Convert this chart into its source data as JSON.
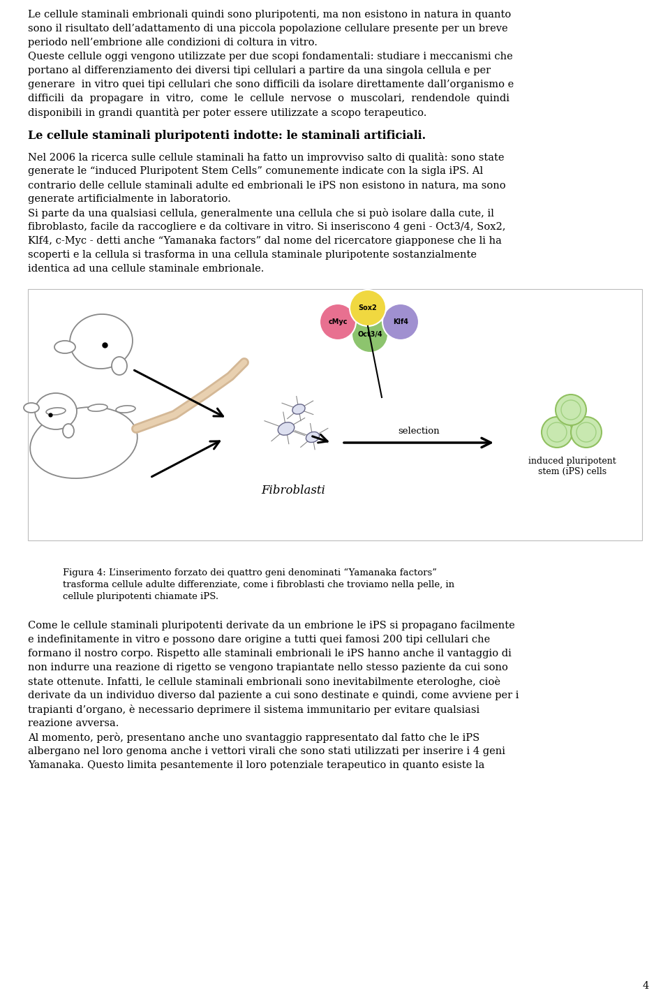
{
  "page_number": "4",
  "bg": "#ffffff",
  "ml": 40,
  "mr": 920,
  "fs_body": 10.5,
  "fs_heading": 11.5,
  "fs_caption": 9.5,
  "lh": 20.0,
  "para1_lines": [
    "Le cellule staminali embrionali quindi sono pluripotenti, ma non esistono in natura in quanto",
    "sono il risultato dell’adattamento di una piccola popolazione cellulare presente per un breve",
    "periodo nell’embrione alle condizioni di coltura in vitro."
  ],
  "para2_lines": [
    "Queste cellule oggi vengono utilizzate per due scopi fondamentali: studiare i meccanismi che",
    "portano al differenziamento dei diversi tipi cellulari a partire da una singola cellula e per",
    "generare  in vitro quei tipi cellulari che sono difficili da isolare direttamente dall’organismo e",
    "difficili  da  propagare  in  vitro,  come  le  cellule  nervose  o  muscolari,  rendendole  quindi",
    "disponibili in grandi quantità per poter essere utilizzate a scopo terapeutico."
  ],
  "heading": "Le cellule staminali pluripotenti indotte: le staminali artificiali.",
  "para3_lines": [
    "Nel 2006 la ricerca sulle cellule staminali ha fatto un improvviso salto di qualità: sono state",
    "generate le “induced Pluripotent Stem Cells” comunemente indicate con la sigla iPS. Al",
    "contrario delle cellule staminali adulte ed embrionali le iPS non esistono in natura, ma sono",
    "generate artificialmente in laboratorio.",
    "Si parte da una qualsiasi cellula, generalmente una cellula che si può isolare dalla cute, il",
    "fibroblasto, facile da raccogliere e da coltivare in vitro. Si inseriscono 4 geni - Oct3/4, Sox2,",
    "Klf4, c-Myc - detti anche “Yamanaka factors” dal nome del ricercatore giapponese che li ha",
    "scoperti e la cellula si trasforma in una cellula staminale pluripotente sostanzialmente",
    "identica ad una cellule staminale embrionale."
  ],
  "caption_lines": [
    "Figura 4: L’inserimento forzato dei quattro geni denominati “Yamanaka factors”",
    "trasforma cellule adulte differenziate, come i fibroblasti che troviamo nella pelle, in",
    "cellule pluripotenti chiamate iPS."
  ],
  "para4_lines": [
    "Come le cellule staminali pluripotenti derivate da un embrione le iPS si propagano facilmente",
    "e indefinitamente in vitro e possono dare origine a tutti quei famosi 200 tipi cellulari che",
    "formano il nostro corpo. Rispetto alle staminali embrionali le iPS hanno anche il vantaggio di",
    "non indurre una reazione di rigetto se vengono trapiantate nello stesso paziente da cui sono",
    "state ottenute. Infatti, le cellule staminali embrionali sono inevitabilmente eterologhe, cioè",
    "derivate da un individuo diverso dal paziente a cui sono destinate e quindi, come avviene per i",
    "trapianti d’organo, è necessario deprimere il sistema immunitario per evitare qualsiasi",
    "reazione avversa.",
    "Al momento, però, presentano anche uno svantaggio rappresentato dal fatto che le iPS",
    "albergano nel loro genoma anche i vettori virali che sono stati utilizzati per inserire i 4 geni",
    "Yamanaka. Questo limita pesantemente il loro potenziale terapeutico in quanto esiste la"
  ],
  "gene_oct34_color": "#8dc46e",
  "gene_sox2_color": "#f0d840",
  "gene_cmyc_color": "#e87090",
  "gene_klf4_color": "#a090d0",
  "ips_cell_color": "#c8e8b0",
  "ips_cell_edge": "#90c060"
}
